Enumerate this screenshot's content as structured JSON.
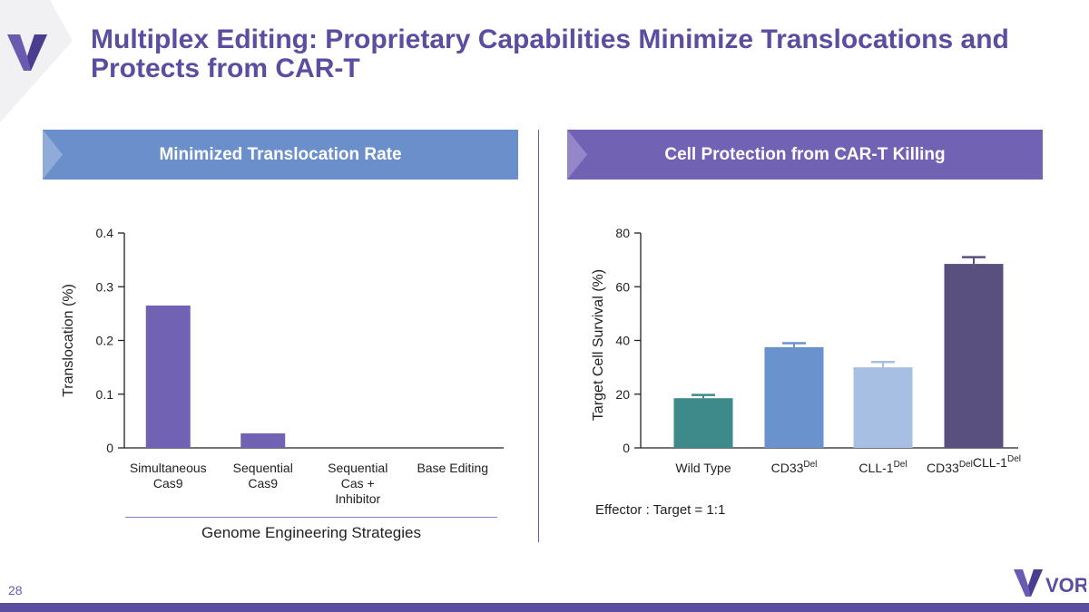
{
  "title": "Multiplex Editing: Proprietary Capabilities Minimize Translocations and Protects from CAR-T",
  "page_number": "28",
  "brand": {
    "name": "VOR",
    "accent": "#5b4da0"
  },
  "panels": {
    "left_header": "Minimized Translocation Rate",
    "right_header": "Cell Protection from CAR-T Killing"
  },
  "annotation": "Effector : Target = 1:1",
  "chart_data": [
    {
      "type": "bar",
      "title": "Minimized Translocation Rate",
      "xlabel": "Genome Engineering Strategies",
      "ylabel": "Translocation (%)",
      "ylim": [
        0,
        0.4
      ],
      "yticks": [
        "0",
        "0.1",
        "0.2",
        "0.3",
        "0.4"
      ],
      "categories": [
        [
          "Simultaneous",
          "Cas9"
        ],
        [
          "Sequential",
          "Cas9"
        ],
        [
          "Sequential",
          "Cas +",
          "Inhibitor"
        ],
        [
          "Base Editing"
        ]
      ],
      "values": [
        0.265,
        0.027,
        0,
        0
      ],
      "color": "#7262b4"
    },
    {
      "type": "bar",
      "title": "Cell Protection from CAR-T Killing",
      "ylabel": "Target Cell Survival (%)",
      "ylim": [
        0,
        80
      ],
      "yticks": [
        "0",
        "20",
        "40",
        "60",
        "80"
      ],
      "categories": [
        [
          {
            "base": "Wild Type",
            "sup": ""
          }
        ],
        [
          {
            "base": "CD33",
            "sup": "Del"
          }
        ],
        [
          {
            "base": "CLL-1",
            "sup": "Del"
          }
        ],
        [
          {
            "base": "CD33",
            "sup": "Del"
          },
          {
            "base": "CLL-1",
            "sup": "Del"
          }
        ]
      ],
      "values": [
        18.5,
        37.5,
        30,
        68.5
      ],
      "errors": [
        1.2,
        1.5,
        2,
        2.5
      ],
      "colors": [
        "#3e8a8a",
        "#6a92cd",
        "#a8bfe4",
        "#5a5080"
      ]
    }
  ]
}
